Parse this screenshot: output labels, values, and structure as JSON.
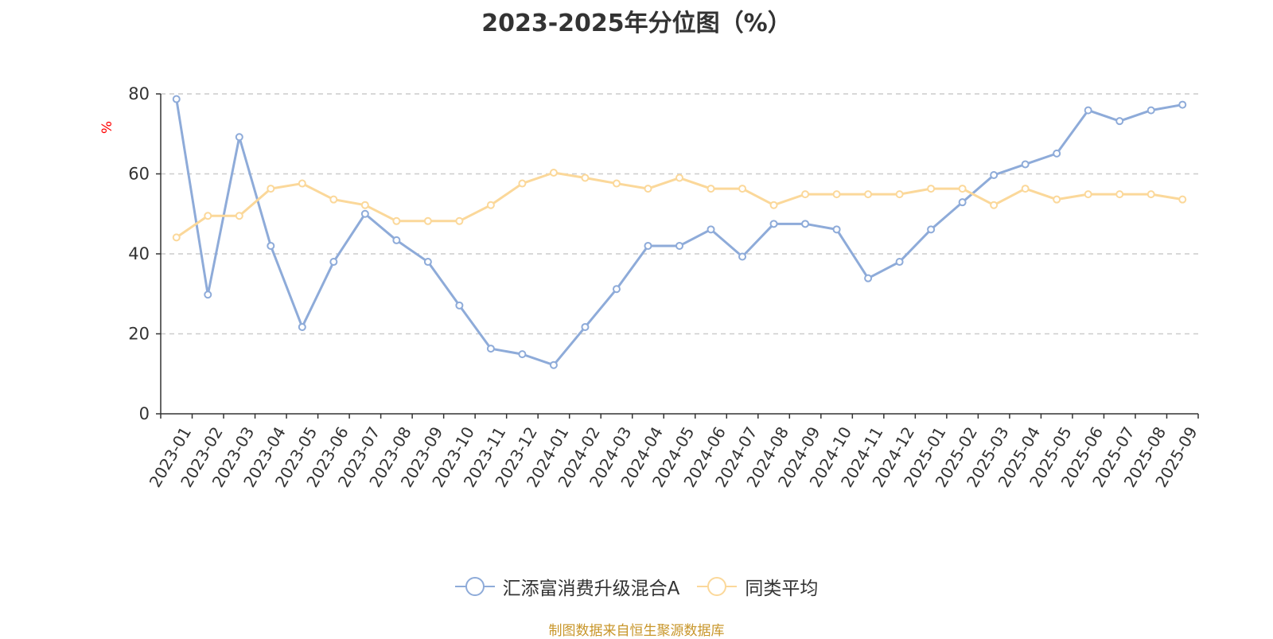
{
  "chart_data": {
    "type": "line",
    "title": "2023-2025年分位图（%）",
    "ylabel": "%",
    "ylim": [
      0,
      80
    ],
    "yticks": [
      0,
      20,
      40,
      60,
      80
    ],
    "grid": true,
    "legend_position": "bottom",
    "categories": [
      "2023-01",
      "2023-02",
      "2023-03",
      "2023-04",
      "2023-05",
      "2023-06",
      "2023-07",
      "2023-08",
      "2023-09",
      "2023-10",
      "2023-11",
      "2023-12",
      "2024-01",
      "2024-02",
      "2024-03",
      "2024-04",
      "2024-05",
      "2024-06",
      "2024-07",
      "2024-08",
      "2024-09",
      "2024-10",
      "2024-11",
      "2024-12",
      "2025-01",
      "2025-02",
      "2025-03",
      "2025-04",
      "2025-05",
      "2025-06",
      "2025-07",
      "2025-08",
      "2025-09"
    ],
    "series": [
      {
        "name": "汇添富消费升级混合A",
        "color": "#8eabd9",
        "values": [
          78.7,
          29.8,
          69.2,
          42.0,
          21.7,
          38.0,
          50.0,
          43.4,
          38.0,
          27.1,
          16.3,
          14.9,
          12.2,
          21.7,
          31.2,
          42.0,
          42.0,
          46.1,
          39.3,
          47.5,
          47.5,
          46.1,
          33.9,
          38.0,
          46.1,
          52.9,
          59.7,
          62.4,
          65.1,
          75.9,
          73.2,
          75.9,
          77.3
        ]
      },
      {
        "name": "同类平均",
        "color": "#fbd89a",
        "values": [
          44.1,
          49.5,
          49.5,
          56.3,
          57.6,
          53.6,
          52.2,
          48.2,
          48.2,
          48.2,
          52.2,
          57.6,
          60.3,
          59.0,
          57.6,
          56.3,
          59.0,
          56.3,
          56.3,
          52.2,
          54.9,
          54.9,
          54.9,
          54.9,
          56.3,
          56.3,
          52.2,
          56.3,
          53.6,
          54.9,
          54.9,
          54.9,
          53.6
        ]
      }
    ]
  },
  "footer": {
    "source_text": "制图数据来自恒生聚源数据库"
  }
}
